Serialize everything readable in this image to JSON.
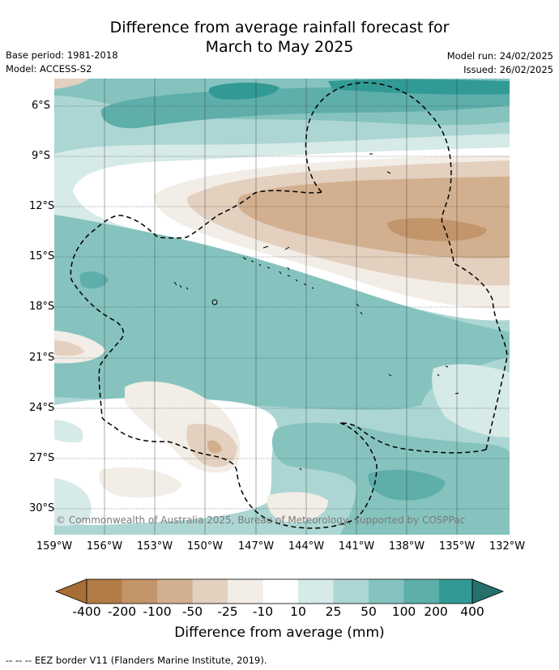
{
  "header": {
    "title_line1": "Difference from average rainfall forecast for",
    "title_line2": "March to May 2025",
    "base_period": "Base period: 1981-2018",
    "model": "Model: ACCESS-S2",
    "model_run": "Model run: 24/02/2025",
    "issued": "Issued: 26/02/2025"
  },
  "map": {
    "copyright": "© Commonwealth of Australia 2025, Bureau of Meteorology, supported by COSPPac",
    "lat_labels": [
      "6°S",
      "9°S",
      "12°S",
      "15°S",
      "18°S",
      "21°S",
      "24°S",
      "27°S",
      "30°S"
    ],
    "lon_labels": [
      "159°W",
      "156°W",
      "153°W",
      "150°W",
      "147°W",
      "144°W",
      "141°W",
      "138°W",
      "135°W",
      "132°W"
    ]
  },
  "colorbar": {
    "labels": [
      "-400",
      "-200",
      "-100",
      "-50",
      "-25",
      "-10",
      "10",
      "25",
      "50",
      "100",
      "200",
      "400"
    ],
    "colors": [
      "#a86e35",
      "#b17c45",
      "#c2956a",
      "#d2b08f",
      "#e4d0bf",
      "#f2ede6",
      "#ffffff",
      "#d6eae8",
      "#acd6d3",
      "#86c3bf",
      "#5eaeaa",
      "#329a95",
      "#26706c"
    ],
    "title": "Difference from average (mm)"
  },
  "legend": {
    "eez_note": "--  --  -- EEZ border V11 (Flanders Marine Institute, 2019)."
  }
}
